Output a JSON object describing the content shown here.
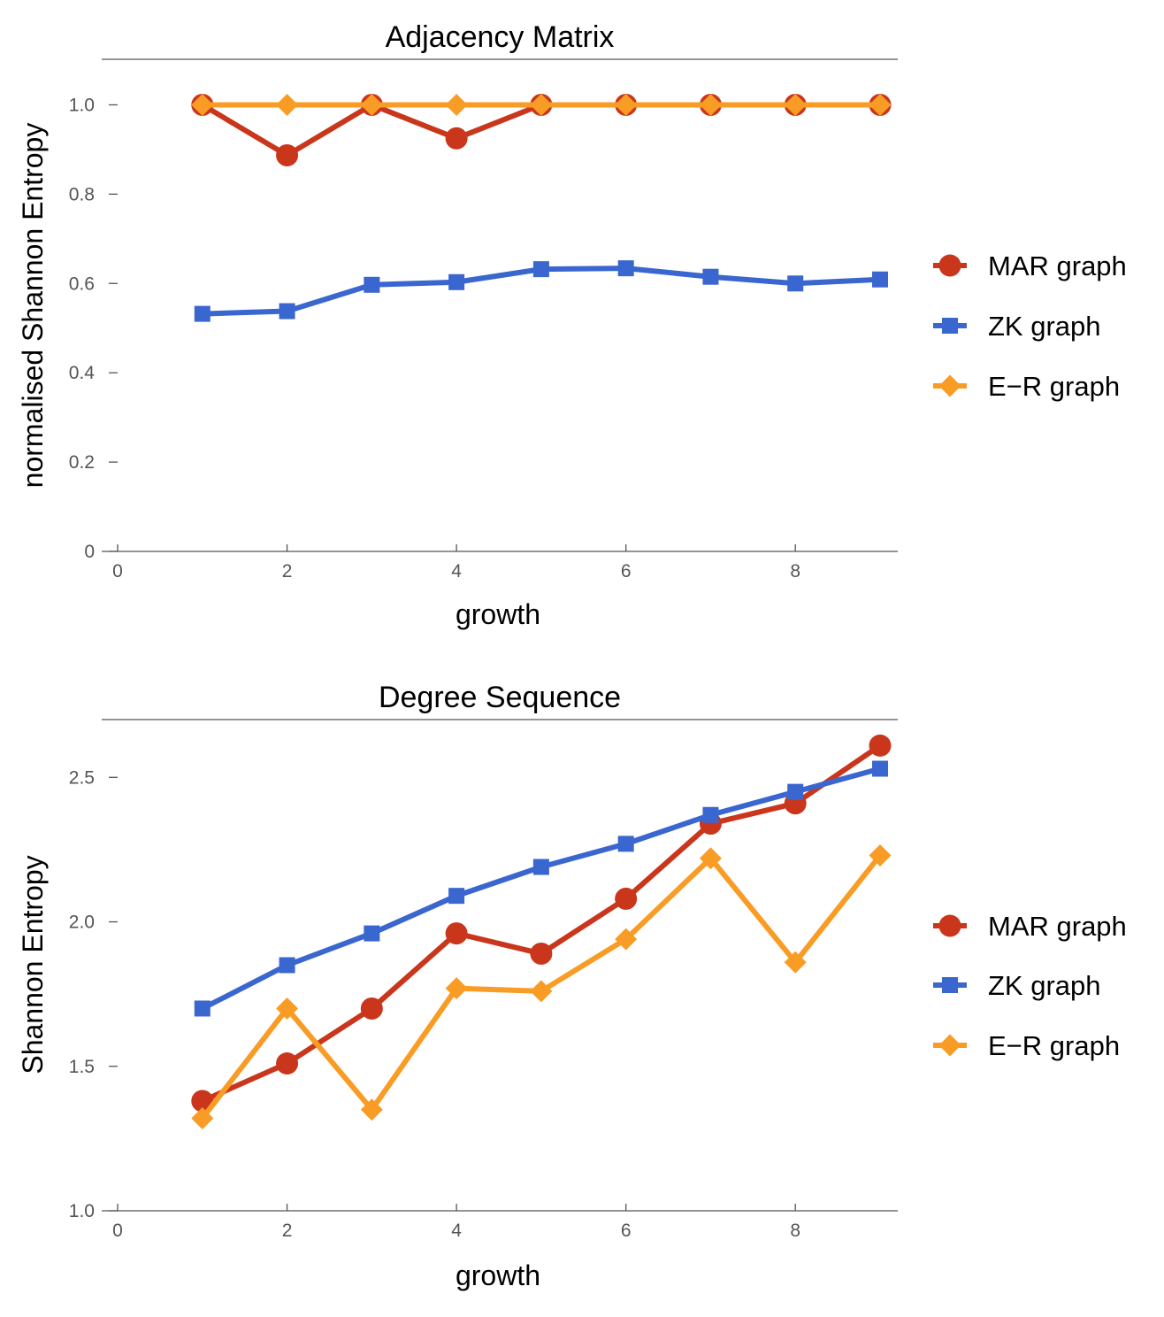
{
  "colors": {
    "mar": "#C9361C",
    "zk": "#3A66CF",
    "er": "#F99C25"
  },
  "chart_data": [
    {
      "type": "line",
      "title": "Adjacency Matrix",
      "xlabel": "growth",
      "ylabel": "normalised Shannon Entropy",
      "xlim": [
        0,
        9
      ],
      "ylim": [
        0,
        1.1
      ],
      "x_ticks": [
        0,
        2,
        4,
        6,
        8
      ],
      "x_tick_labels": [
        "0",
        "2",
        "4",
        "6",
        "8"
      ],
      "y_ticks": [
        0,
        0.2,
        0.4,
        0.6,
        0.8,
        1.0
      ],
      "y_tick_labels": [
        "0",
        "0.2",
        "0.4",
        "0.6",
        "0.8",
        "1.0"
      ],
      "legend_position": "right",
      "grid": false,
      "series": [
        {
          "name": "MAR graph",
          "key": "mar",
          "marker": "circle",
          "x": [
            1,
            2,
            3,
            4,
            5,
            6,
            7,
            8,
            9
          ],
          "y": [
            1.0,
            0.887,
            1.0,
            0.925,
            1.0,
            1.0,
            1.0,
            1.0,
            1.0
          ]
        },
        {
          "name": "ZK graph",
          "key": "zk",
          "marker": "square",
          "x": [
            1,
            2,
            3,
            4,
            5,
            6,
            7,
            8,
            9
          ],
          "y": [
            0.532,
            0.538,
            0.597,
            0.603,
            0.632,
            0.634,
            0.615,
            0.6,
            0.609
          ]
        },
        {
          "name": "E−R graph",
          "key": "er",
          "marker": "diamond",
          "x": [
            1,
            2,
            3,
            4,
            5,
            6,
            7,
            8,
            9
          ],
          "y": [
            1.0,
            1.0,
            1.0,
            1.0,
            1.0,
            1.0,
            1.0,
            1.0,
            1.0
          ]
        }
      ]
    },
    {
      "type": "line",
      "title": "Degree Sequence",
      "xlabel": "growth",
      "ylabel": "Shannon Entropy",
      "xlim": [
        0,
        9
      ],
      "ylim": [
        1.0,
        2.7
      ],
      "x_ticks": [
        0,
        2,
        4,
        6,
        8
      ],
      "x_tick_labels": [
        "0",
        "2",
        "4",
        "6",
        "8"
      ],
      "y_ticks": [
        1.0,
        1.5,
        2.0,
        2.5
      ],
      "y_tick_labels": [
        "1.0",
        "1.5",
        "2.0",
        "2.5"
      ],
      "legend_position": "right",
      "grid": false,
      "series": [
        {
          "name": "MAR graph",
          "key": "mar",
          "marker": "circle",
          "x": [
            1,
            2,
            3,
            4,
            5,
            6,
            7,
            8,
            9
          ],
          "y": [
            1.38,
            1.51,
            1.7,
            1.96,
            1.89,
            2.08,
            2.34,
            2.41,
            2.61
          ]
        },
        {
          "name": "ZK graph",
          "key": "zk",
          "marker": "square",
          "x": [
            1,
            2,
            3,
            4,
            5,
            6,
            7,
            8,
            9
          ],
          "y": [
            1.7,
            1.85,
            1.96,
            2.09,
            2.19,
            2.27,
            2.37,
            2.45,
            2.53
          ]
        },
        {
          "name": "E−R graph",
          "key": "er",
          "marker": "diamond",
          "x": [
            1,
            2,
            3,
            4,
            5,
            6,
            7,
            8,
            9
          ],
          "y": [
            1.32,
            1.7,
            1.35,
            1.77,
            1.76,
            1.94,
            2.22,
            1.86,
            2.23
          ]
        }
      ]
    }
  ]
}
